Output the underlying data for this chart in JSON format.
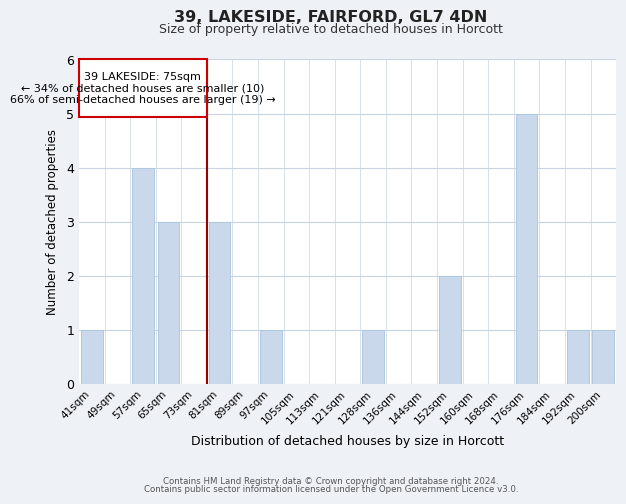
{
  "title": "39, LAKESIDE, FAIRFORD, GL7 4DN",
  "subtitle": "Size of property relative to detached houses in Horcott",
  "xlabel": "Distribution of detached houses by size in Horcott",
  "ylabel": "Number of detached properties",
  "categories": [
    "41sqm",
    "49sqm",
    "57sqm",
    "65sqm",
    "73sqm",
    "81sqm",
    "89sqm",
    "97sqm",
    "105sqm",
    "113sqm",
    "121sqm",
    "128sqm",
    "136sqm",
    "144sqm",
    "152sqm",
    "160sqm",
    "168sqm",
    "176sqm",
    "184sqm",
    "192sqm",
    "200sqm"
  ],
  "values": [
    1,
    0,
    4,
    3,
    0,
    3,
    0,
    1,
    0,
    0,
    0,
    1,
    0,
    0,
    2,
    0,
    0,
    5,
    0,
    1,
    1
  ],
  "bar_color": "#c9d9eb",
  "bar_edgecolor": "#b0c8dc",
  "ylim": [
    0,
    6
  ],
  "yticks": [
    0,
    1,
    2,
    3,
    4,
    5,
    6
  ],
  "vline_index": 4,
  "vline_color": "#990000",
  "annotation_title": "39 LAKESIDE: 75sqm",
  "annotation_line1": "← 34% of detached houses are smaller (10)",
  "annotation_line2": "66% of semi-detached houses are larger (19) →",
  "annotation_box_edgecolor": "#cc0000",
  "footer_line1": "Contains HM Land Registry data © Crown copyright and database right 2024.",
  "footer_line2": "Contains public sector information licensed under the Open Government Licence v3.0.",
  "background_color": "#eef2f7",
  "plot_background": "#ffffff",
  "grid_color": "#c8d4e0"
}
